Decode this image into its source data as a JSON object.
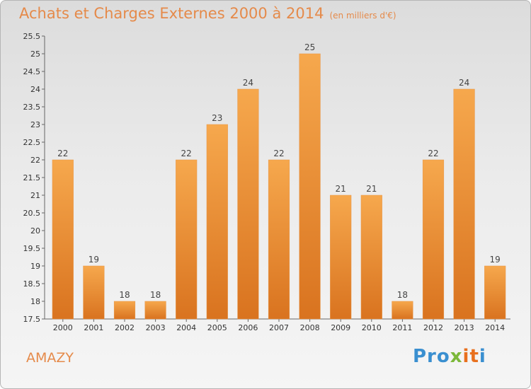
{
  "header": {
    "title": "Achats et Charges Externes 2000 à 2014",
    "subtitle": "(en milliers d'€)"
  },
  "commune": "AMAZY",
  "logo": {
    "text": "Proxiti",
    "parts": [
      "Pro",
      "x",
      "it",
      "i"
    ]
  },
  "colors": {
    "bar_light": "#f6a84d",
    "bar_dark": "#d9731f",
    "title": "#e58a4a"
  },
  "chart_data": {
    "type": "bar",
    "title": "Achats et Charges Externes 2000 à 2014",
    "subtitle": "(en milliers d'€)",
    "categories": [
      "2000",
      "2001",
      "2002",
      "2003",
      "2004",
      "2005",
      "2006",
      "2007",
      "2008",
      "2009",
      "2010",
      "2011",
      "2012",
      "2013",
      "2014"
    ],
    "values": [
      22,
      19,
      18,
      18,
      22,
      23,
      24,
      22,
      25,
      21,
      21,
      18,
      22,
      24,
      19
    ],
    "data_labels": [
      "22",
      "19",
      "18",
      "18",
      "22",
      "23",
      "24",
      "22",
      "25",
      "21",
      "21",
      "18",
      "22",
      "24",
      "19"
    ],
    "ylim": [
      17.5,
      25.5
    ],
    "yticks": [
      17.5,
      18,
      18.5,
      19,
      19.5,
      20,
      20.5,
      21,
      21.5,
      22,
      22.5,
      23,
      23.5,
      24,
      24.5,
      25,
      25.5
    ],
    "ytick_labels": [
      "17.5",
      "18",
      "18.5",
      "19",
      "19.5",
      "20",
      "20.5",
      "21",
      "21.5",
      "22",
      "22.5",
      "23",
      "23.5",
      "24",
      "24.5",
      "25",
      "25.5"
    ],
    "xlabel": "",
    "ylabel": "",
    "grid": false,
    "legend": "none"
  }
}
